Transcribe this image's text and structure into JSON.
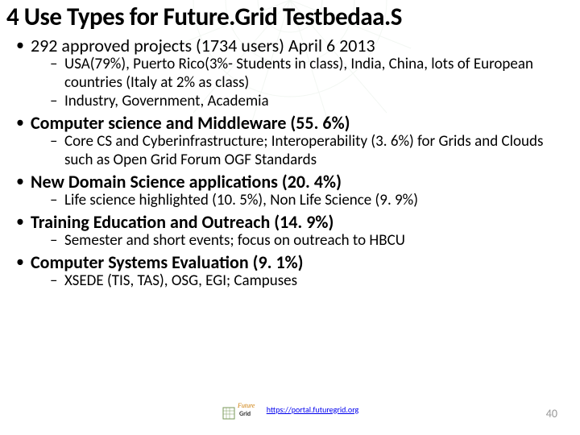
{
  "title": "4 Use Types for Future.Grid Testbedaa.S",
  "bullets": [
    {
      "text": "292 approved projects (1734 users) April 6 2013",
      "bold": false,
      "subs": [
        "USA(79%), Puerto Rico(3%- Students in class), India, China, lots of European countries (Italy at 2% as class)",
        "Industry, Government, Academia"
      ]
    },
    {
      "text": "Computer science and Middleware (55. 6%)",
      "bold": true,
      "subs": [
        "Core CS and Cyberinfrastructure; Interoperability (3. 6%) for Grids and Clouds such as Open Grid Forum OGF Standards"
      ]
    },
    {
      "text": "New Domain Science applications (20. 4%)",
      "bold": true,
      "subs": [
        "Life science highlighted (10. 5%), Non Life Science (9. 9%)"
      ]
    },
    {
      "text": "Training Education and Outreach (14. 9%)",
      "bold": true,
      "subs": [
        "Semester and short events; focus on outreach to HBCU"
      ]
    },
    {
      "text": "Computer Systems Evaluation (9. 1%)",
      "bold": true,
      "subs": [
        "XSEDE (TIS, TAS), OSG, EGI; Campuses"
      ]
    }
  ],
  "footer": {
    "url": "https://portal.futuregrid.org",
    "logo_text": "Future Grid"
  },
  "page_number": "40",
  "colors": {
    "title": "#000000",
    "text": "#000000",
    "link": "#0000ee",
    "pagenum": "#999999",
    "bg_accent": "#8fbf8f"
  }
}
